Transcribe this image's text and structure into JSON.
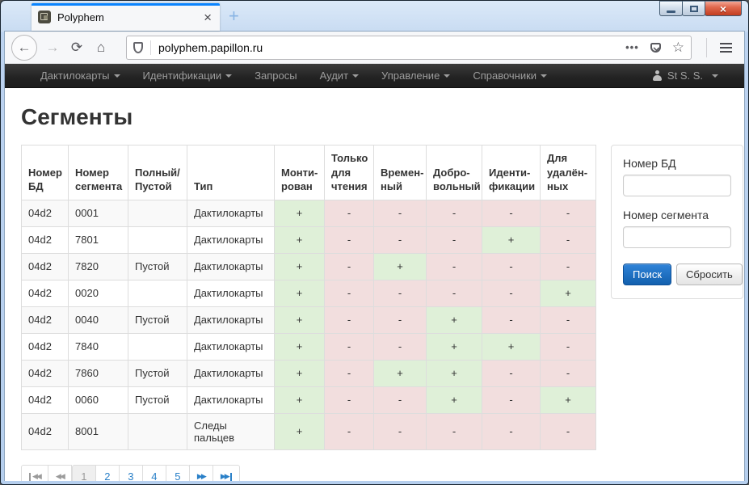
{
  "window": {
    "tab_title": "Polyphem",
    "tab_close": "×",
    "new_tab": "+",
    "close_glyph": "×"
  },
  "browser": {
    "url": "polyphem.papillon.ru"
  },
  "site_nav": {
    "items": [
      {
        "label": "Дактилокарты",
        "caret": true
      },
      {
        "label": "Идентификации",
        "caret": true
      },
      {
        "label": "Запросы",
        "caret": false
      },
      {
        "label": "Аудит",
        "caret": true
      },
      {
        "label": "Управление",
        "caret": true
      },
      {
        "label": "Справочники",
        "caret": true
      }
    ],
    "user": "St S. S."
  },
  "page": {
    "title": "Сегменты",
    "table": {
      "headers": [
        "Номер\nБД",
        "Номер\nсегмента",
        "Полный/\nПустой",
        "Тип",
        "Монти-\nрован",
        "Только\nдля\nчтения",
        "Времен-\nный",
        "Добро-\nвольный",
        "Иденти-\nфикации",
        "Для\nудалён-\nных"
      ],
      "rows": [
        {
          "db": "04d2",
          "segment": "0001",
          "full": "",
          "type": "Дактилокарты",
          "flags": [
            "+",
            "-",
            "-",
            "-",
            "-",
            "-"
          ]
        },
        {
          "db": "04d2",
          "segment": "7801",
          "full": "",
          "type": "Дактилокарты",
          "flags": [
            "+",
            "-",
            "-",
            "-",
            "+",
            "-"
          ]
        },
        {
          "db": "04d2",
          "segment": "7820",
          "full": "Пустой",
          "type": "Дактилокарты",
          "flags": [
            "+",
            "-",
            "+",
            "-",
            "-",
            "-"
          ]
        },
        {
          "db": "04d2",
          "segment": "0020",
          "full": "",
          "type": "Дактилокарты",
          "flags": [
            "+",
            "-",
            "-",
            "-",
            "-",
            "+"
          ]
        },
        {
          "db": "04d2",
          "segment": "0040",
          "full": "Пустой",
          "type": "Дактилокарты",
          "flags": [
            "+",
            "-",
            "-",
            "+",
            "-",
            "-"
          ]
        },
        {
          "db": "04d2",
          "segment": "7840",
          "full": "",
          "type": "Дактилокарты",
          "flags": [
            "+",
            "-",
            "-",
            "+",
            "+",
            "-"
          ]
        },
        {
          "db": "04d2",
          "segment": "7860",
          "full": "Пустой",
          "type": "Дактилокарты",
          "flags": [
            "+",
            "-",
            "+",
            "+",
            "-",
            "-"
          ]
        },
        {
          "db": "04d2",
          "segment": "0060",
          "full": "Пустой",
          "type": "Дактилокарты",
          "flags": [
            "+",
            "-",
            "-",
            "+",
            "-",
            "+"
          ]
        },
        {
          "db": "04d2",
          "segment": "8001",
          "full": "",
          "type": "Следы пальцев",
          "flags": [
            "+",
            "-",
            "-",
            "-",
            "-",
            "-"
          ]
        }
      ]
    },
    "search_form": {
      "db_label": "Номер БД",
      "db_value": "",
      "segment_label": "Номер сегмента",
      "segment_value": "",
      "search_button": "Поиск",
      "reset_button": "Сбросить"
    },
    "pagination": {
      "pages": [
        "1",
        "2",
        "3",
        "4",
        "5"
      ],
      "active": "1"
    }
  },
  "colors": {
    "flag_true_bg": "#dff0d8",
    "flag_false_bg": "#f2dede",
    "primary_button": "#1260ae",
    "navbar_bg": "#222222",
    "tab_accent": "#0a84ff",
    "frame_blue": "#b6cfee"
  }
}
